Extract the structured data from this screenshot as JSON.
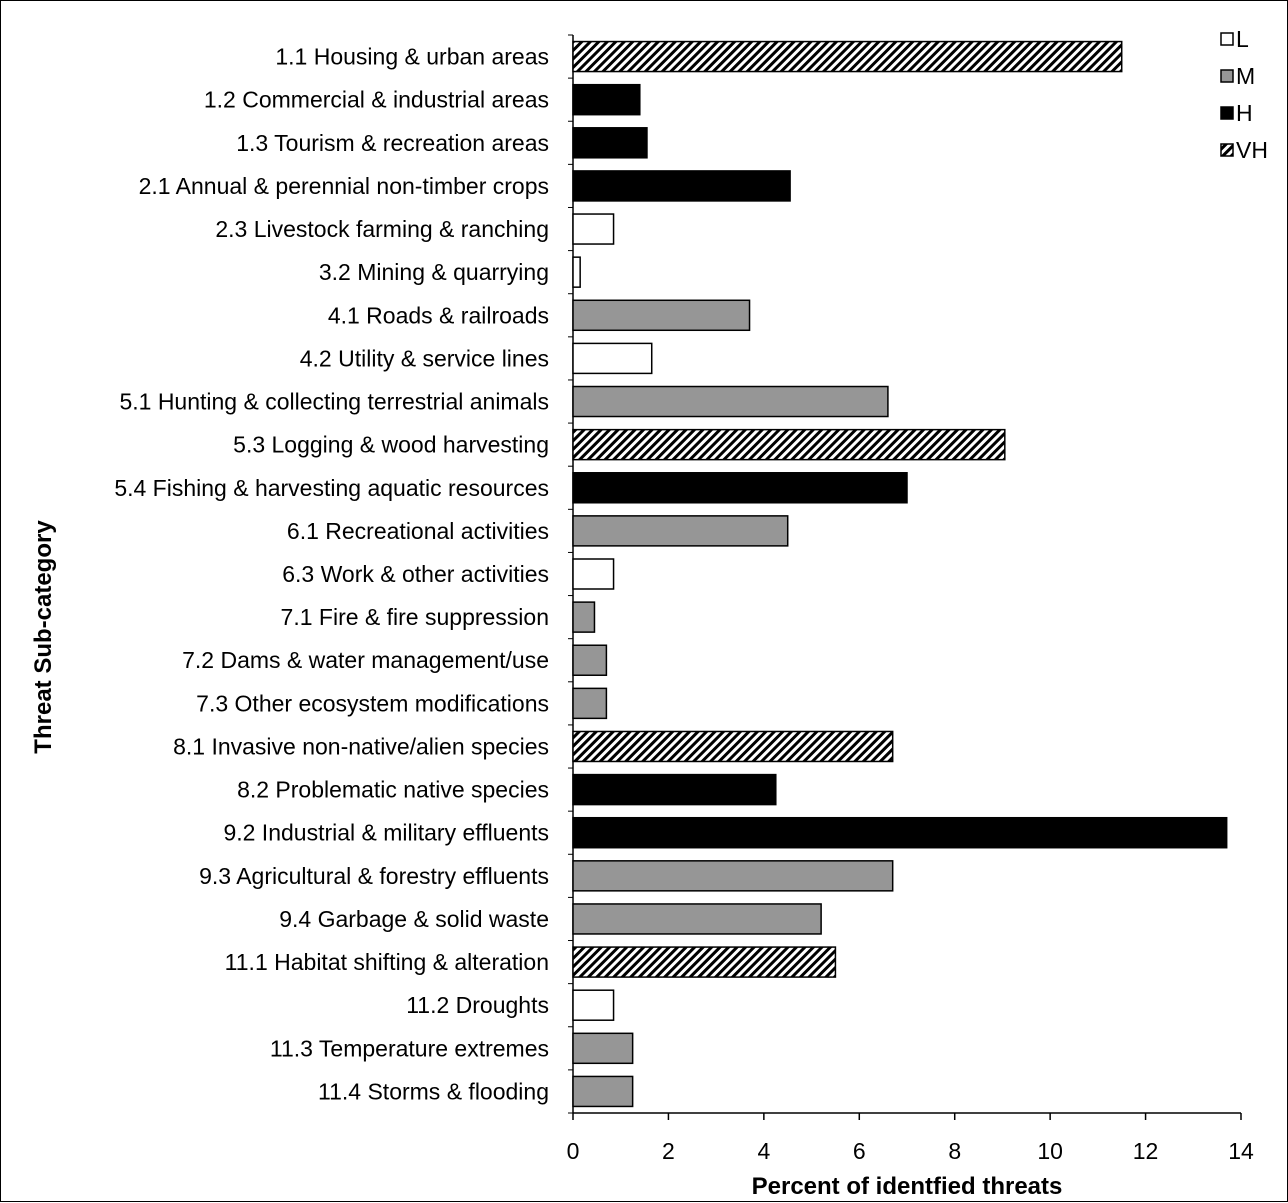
{
  "chart_data": {
    "type": "bar",
    "orientation": "horizontal",
    "xlabel": "Percent of identfied threats",
    "ylabel": "Threat Sub-category",
    "xlim": [
      0,
      14
    ],
    "xticks": [
      0,
      2,
      4,
      6,
      8,
      10,
      12,
      14
    ],
    "grid": false,
    "legend_position": "top-right",
    "legend": [
      {
        "key": "L",
        "label": "L",
        "fill": "#ffffff",
        "pattern": "none"
      },
      {
        "key": "M",
        "label": "M",
        "fill": "#969696",
        "pattern": "none"
      },
      {
        "key": "H",
        "label": "H",
        "fill": "#000000",
        "pattern": "none"
      },
      {
        "key": "VH",
        "label": "VH",
        "fill": "#ffffff",
        "pattern": "diagonal-hatch"
      }
    ],
    "categories": [
      "1.1 Housing & urban areas",
      "1.2 Commercial & industrial areas",
      "1.3 Tourism & recreation areas",
      "2.1 Annual & perennial non-timber crops",
      "2.3 Livestock farming & ranching",
      "3.2 Mining & quarrying",
      "4.1 Roads & railroads",
      "4.2 Utility & service lines",
      "5.1 Hunting & collecting terrestrial animals",
      "5.3 Logging & wood harvesting",
      "5.4 Fishing & harvesting aquatic resources",
      "6.1 Recreational activities",
      "6.3 Work & other activities",
      "7.1 Fire & fire suppression",
      "7.2 Dams & water management/use",
      "7.3 Other ecosystem modifications",
      "8.1 Invasive non-native/alien species",
      "8.2 Problematic native species",
      "9.2 Industrial & military effluents",
      "9.3 Agricultural & forestry effluents",
      "9.4 Garbage & solid waste",
      "11.1 Habitat shifting & alteration",
      "11.2 Droughts",
      "11.3 Temperature extremes",
      "11.4 Storms & flooding"
    ],
    "values": [
      11.5,
      1.4,
      1.55,
      4.55,
      0.85,
      0.15,
      3.7,
      1.65,
      6.6,
      9.05,
      7.0,
      4.5,
      0.85,
      0.45,
      0.7,
      0.7,
      6.7,
      4.25,
      13.7,
      6.7,
      5.2,
      5.5,
      0.85,
      1.25,
      1.25
    ],
    "severity": [
      "VH",
      "H",
      "H",
      "H",
      "L",
      "L",
      "M",
      "L",
      "M",
      "VH",
      "H",
      "M",
      "L",
      "M",
      "M",
      "M",
      "VH",
      "H",
      "H",
      "M",
      "M",
      "VH",
      "L",
      "M",
      "M"
    ]
  }
}
